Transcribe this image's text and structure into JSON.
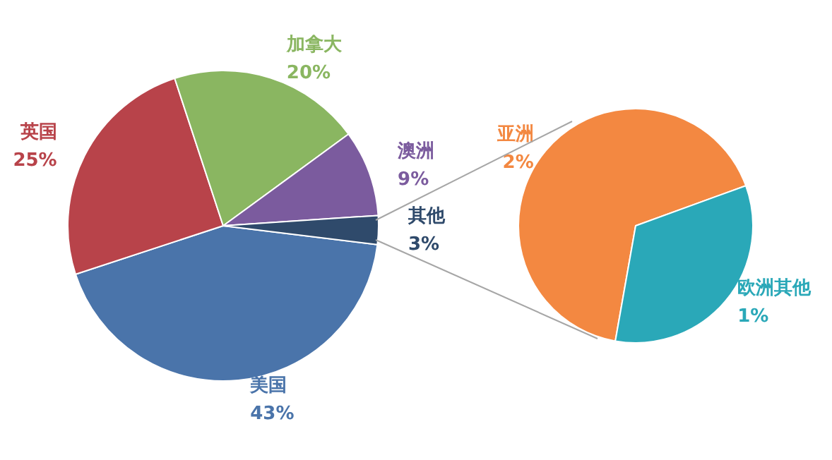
{
  "chart_data": [
    {
      "type": "pie",
      "categories": [
        "美国",
        "英国",
        "加拿大",
        "澳洲",
        "其他"
      ],
      "values": [
        43,
        25,
        20,
        9,
        3
      ],
      "colors": [
        "#4a74aa",
        "#b8434a",
        "#8ab661",
        "#7b5b9e",
        "#2f4a6b"
      ],
      "value_labels": [
        "43%",
        "25%",
        "20%",
        "9%",
        "3%"
      ],
      "legend": false
    },
    {
      "type": "pie",
      "categories": [
        "亚洲",
        "欧洲其他"
      ],
      "values": [
        2,
        1
      ],
      "colors": [
        "#f38841",
        "#2aa8b8"
      ],
      "value_labels": [
        "2%",
        "1%"
      ],
      "legend": false
    }
  ]
}
